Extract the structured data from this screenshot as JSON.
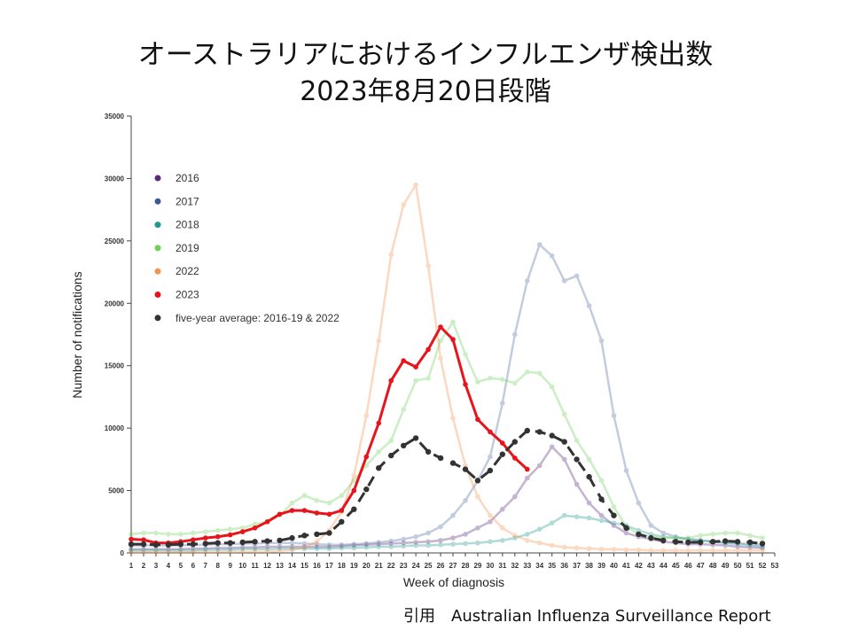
{
  "title_line1": "オーストラリアにおけるインフルエンザ検出数",
  "title_line2": "2023年8月20日段階",
  "citation": "引用　Australian Influenza Surveillance Report",
  "chart_data": {
    "type": "line",
    "xlabel": "Week of diagnosis",
    "ylabel": "Number of notifications",
    "xlim": [
      1,
      53
    ],
    "ylim": [
      0,
      35000
    ],
    "yticks": [
      0,
      5000,
      10000,
      15000,
      20000,
      25000,
      30000,
      35000
    ],
    "x": [
      1,
      2,
      3,
      4,
      5,
      6,
      7,
      8,
      9,
      10,
      11,
      12,
      13,
      14,
      15,
      16,
      17,
      18,
      19,
      20,
      21,
      22,
      23,
      24,
      25,
      26,
      27,
      28,
      29,
      30,
      31,
      32,
      33,
      34,
      35,
      36,
      37,
      38,
      39,
      40,
      41,
      42,
      43,
      44,
      45,
      46,
      47,
      48,
      49,
      50,
      51,
      52,
      53
    ],
    "legend_position": "top-left",
    "series": [
      {
        "name": "2016",
        "color": "#5b2a7a",
        "opacity": 0.35,
        "dashed": false,
        "values": [
          300,
          300,
          300,
          300,
          300,
          350,
          350,
          400,
          400,
          450,
          450,
          500,
          500,
          500,
          500,
          500,
          500,
          550,
          600,
          650,
          700,
          750,
          800,
          850,
          900,
          1000,
          1200,
          1500,
          2000,
          2500,
          3500,
          4500,
          6000,
          7000,
          8500,
          7500,
          5500,
          4000,
          3000,
          2200,
          1600,
          1300,
          1100,
          900,
          800,
          700,
          700,
          650,
          600,
          500,
          450,
          400,
          null
        ]
      },
      {
        "name": "2017",
        "color": "#3b5998",
        "opacity": 0.3,
        "dashed": false,
        "values": [
          600,
          600,
          600,
          600,
          600,
          650,
          650,
          700,
          700,
          750,
          750,
          800,
          800,
          800,
          750,
          700,
          650,
          650,
          700,
          750,
          850,
          950,
          1100,
          1300,
          1600,
          2100,
          3000,
          4200,
          5800,
          7700,
          12000,
          17500,
          21800,
          24700,
          23800,
          21800,
          22200,
          19800,
          17000,
          11000,
          6600,
          4000,
          2200,
          1600,
          1300,
          1100,
          1000,
          900,
          850,
          800,
          700,
          650,
          null
        ]
      },
      {
        "name": "2018",
        "color": "#1f9a8f",
        "opacity": 0.35,
        "dashed": false,
        "values": [
          200,
          200,
          200,
          200,
          200,
          200,
          250,
          250,
          250,
          300,
          300,
          300,
          350,
          350,
          350,
          350,
          350,
          400,
          400,
          450,
          500,
          500,
          550,
          600,
          600,
          650,
          700,
          750,
          800,
          900,
          1000,
          1200,
          1500,
          1900,
          2400,
          3000,
          2900,
          2800,
          2600,
          2400,
          2200,
          1800,
          1500,
          1300,
          1200,
          1100,
          1000,
          900,
          800,
          700,
          600,
          500,
          null
        ]
      },
      {
        "name": "2019",
        "color": "#6dd15a",
        "opacity": 0.35,
        "dashed": false,
        "values": [
          1500,
          1600,
          1600,
          1500,
          1500,
          1600,
          1700,
          1800,
          1900,
          2000,
          2300,
          2500,
          3000,
          4000,
          4600,
          4200,
          4000,
          4600,
          5800,
          7000,
          8100,
          9000,
          11500,
          13800,
          14000,
          17000,
          18500,
          15900,
          13700,
          14000,
          13900,
          13600,
          14500,
          14400,
          13300,
          11100,
          9000,
          7500,
          5800,
          3700,
          2100,
          1500,
          1300,
          1200,
          1200,
          1200,
          1400,
          1500,
          1600,
          1600,
          1400,
          1200,
          null
        ]
      },
      {
        "name": "2022",
        "color": "#f5924e",
        "opacity": 0.35,
        "dashed": false,
        "values": [
          50,
          50,
          50,
          50,
          50,
          50,
          60,
          60,
          70,
          80,
          90,
          100,
          150,
          250,
          450,
          900,
          1800,
          3300,
          6200,
          11000,
          17000,
          23900,
          27900,
          29500,
          23000,
          15600,
          10800,
          7000,
          4500,
          3000,
          2000,
          1400,
          1000,
          800,
          600,
          450,
          400,
          350,
          300,
          300,
          250,
          250,
          200,
          200,
          200,
          200,
          200,
          200,
          200,
          200,
          200,
          200,
          null
        ]
      },
      {
        "name": "2023",
        "color": "#e8141c",
        "opacity": 1,
        "dashed": false,
        "values": [
          1100,
          1050,
          800,
          800,
          900,
          1050,
          1200,
          1300,
          1450,
          1700,
          2000,
          2500,
          3100,
          3400,
          3400,
          3200,
          3100,
          3400,
          5000,
          7700,
          10400,
          13800,
          15400,
          14900,
          16300,
          18100,
          17100,
          13500,
          10700,
          9700,
          8800,
          7600,
          6700,
          null,
          null,
          null,
          null,
          null,
          null,
          null,
          null,
          null,
          null,
          null,
          null,
          null,
          null,
          null,
          null,
          null,
          null,
          null,
          null
        ]
      },
      {
        "name": "five-year average: 2016-19 & 2022",
        "color": "#333333",
        "opacity": 1,
        "dashed": true,
        "values": [
          700,
          700,
          650,
          650,
          700,
          700,
          750,
          800,
          800,
          850,
          900,
          950,
          1000,
          1200,
          1400,
          1500,
          1600,
          2500,
          3500,
          5100,
          6800,
          7800,
          8600,
          9200,
          8100,
          7600,
          7200,
          6700,
          5800,
          6600,
          7900,
          8900,
          9800,
          9700,
          9400,
          8900,
          7500,
          6100,
          4300,
          3000,
          2000,
          1500,
          1200,
          1000,
          900,
          850,
          850,
          900,
          950,
          900,
          850,
          750,
          null
        ]
      }
    ]
  }
}
